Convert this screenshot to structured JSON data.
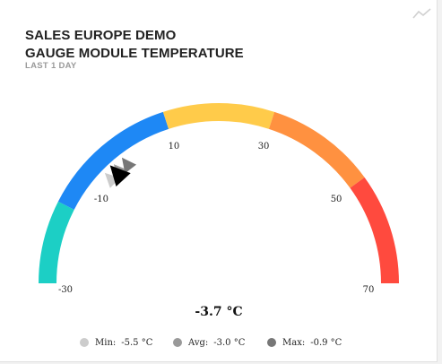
{
  "header": {
    "title_line1": "SALES EUROPE DEMO",
    "title_line2": "GAUGE MODULE TEMPERATURE",
    "subtitle": "LAST 1 DAY",
    "chart_icon": "line-chart-icon"
  },
  "chart_data": {
    "type": "gauge",
    "min": -30,
    "max": 70,
    "ticks": [
      {
        "value": -30,
        "label": "-30"
      },
      {
        "value": -10,
        "label": "-10"
      },
      {
        "value": 10,
        "label": "10"
      },
      {
        "value": 30,
        "label": "30"
      },
      {
        "value": 50,
        "label": "50"
      },
      {
        "value": 70,
        "label": "70"
      }
    ],
    "bands": [
      {
        "from": -30,
        "to": -15,
        "color": "#1ccfc5"
      },
      {
        "from": -15,
        "to": 10,
        "color": "#1e88f5"
      },
      {
        "from": 10,
        "to": 30,
        "color": "#ffcb4a"
      },
      {
        "from": 30,
        "to": 50,
        "color": "#ff9140"
      },
      {
        "from": 50,
        "to": 70,
        "color": "#ff4a3e"
      }
    ],
    "current": -3.7,
    "current_label": "-3.7 °C",
    "markers": [
      {
        "name": "Min:",
        "value": -5.5,
        "label": "-5.5 °C",
        "color": "#cccccc"
      },
      {
        "name": "Avg:",
        "value": -3.0,
        "label": "-3.0 °C",
        "color": "#999999"
      },
      {
        "name": "Max:",
        "value": -0.9,
        "label": "-0.9 °C",
        "color": "#777777"
      }
    ],
    "pointer_color": "#000000"
  }
}
